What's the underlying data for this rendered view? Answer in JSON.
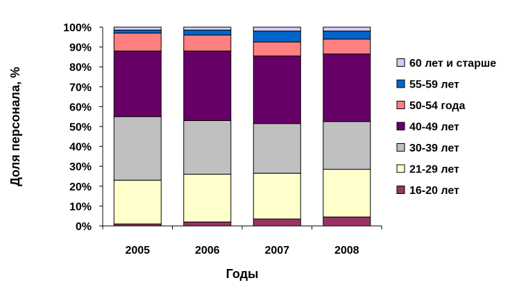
{
  "chart_data": {
    "type": "stacked-bar-100",
    "categories": [
      "2005",
      "2006",
      "2007",
      "2008"
    ],
    "xlabel": "Годы",
    "ylabel": "Доля персонала, %",
    "ylim": [
      0,
      100
    ],
    "yticks": [
      "0%",
      "10%",
      "20%",
      "30%",
      "40%",
      "50%",
      "60%",
      "70%",
      "80%",
      "90%",
      "100%"
    ],
    "grid": false,
    "legend_position": "right",
    "series": [
      {
        "name": "16-20 лет",
        "color": "#993366",
        "values": [
          1,
          2,
          3.5,
          4.5
        ]
      },
      {
        "name": "21-29 лет",
        "color": "#FFFFCC",
        "values": [
          22,
          24,
          23,
          24
        ]
      },
      {
        "name": "30-39 лет",
        "color": "#C0C0C0",
        "values": [
          32,
          27,
          25,
          24
        ]
      },
      {
        "name": "40-49 лет",
        "color": "#660066",
        "values": [
          33,
          35,
          34,
          34
        ]
      },
      {
        "name": "50-54 года",
        "color": "#FF8080",
        "values": [
          9,
          8,
          7,
          7.5
        ]
      },
      {
        "name": "55-59 лет",
        "color": "#0066CC",
        "values": [
          1.5,
          2.5,
          5.5,
          4
        ]
      },
      {
        "name": "60 лет и старше",
        "color": "#CCCCFF",
        "values": [
          1.5,
          1.5,
          2,
          2
        ]
      }
    ]
  }
}
